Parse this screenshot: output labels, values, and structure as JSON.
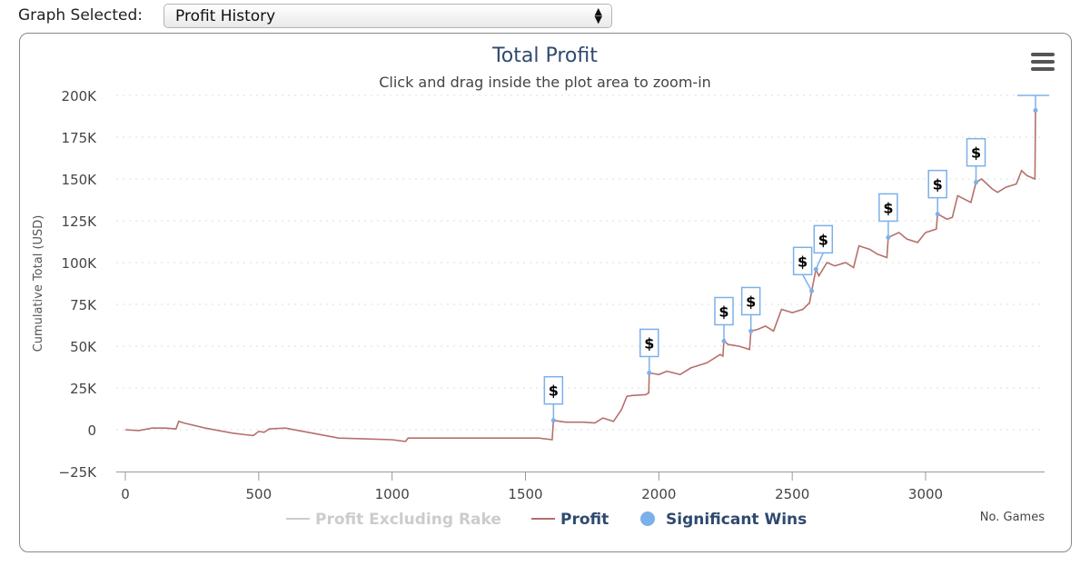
{
  "selector": {
    "label": "Graph Selected:",
    "value": "Profit History"
  },
  "chart_data": {
    "type": "line",
    "title": "Total Profit",
    "subtitle": "Click and drag inside the plot area to zoom-in",
    "xlabel": "No. Games",
    "ylabel": "Cumulative Total (USD)",
    "xlim": [
      -20,
      3450
    ],
    "ylim": [
      -25,
      200
    ],
    "x_ticks": [
      0,
      500,
      1000,
      1500,
      2000,
      2500,
      3000
    ],
    "y_ticks": [
      {
        "v": 200,
        "l": "200K"
      },
      {
        "v": 175,
        "l": "175K"
      },
      {
        "v": 150,
        "l": "150K"
      },
      {
        "v": 125,
        "l": "125K"
      },
      {
        "v": 100,
        "l": "100K"
      },
      {
        "v": 75,
        "l": "75K"
      },
      {
        "v": 50,
        "l": "50K"
      },
      {
        "v": 25,
        "l": "25K"
      },
      {
        "v": 0,
        "l": "0"
      },
      {
        "v": -25,
        "l": "−25K"
      }
    ],
    "legend": [
      {
        "name": "Profit Excluding Rake",
        "color": "#cccccc",
        "visible": false
      },
      {
        "name": "Profit",
        "color": "#b5706b",
        "visible": true
      },
      {
        "name": "Significant Wins",
        "color": "#7cb0ea",
        "visible": true
      }
    ],
    "series": [
      {
        "name": "Profit",
        "color": "#b5706b",
        "points": [
          [
            0,
            0
          ],
          [
            50,
            -0.5
          ],
          [
            100,
            1
          ],
          [
            150,
            1
          ],
          [
            190,
            0.5
          ],
          [
            200,
            5
          ],
          [
            220,
            4
          ],
          [
            300,
            1
          ],
          [
            400,
            -2
          ],
          [
            450,
            -3
          ],
          [
            480,
            -3.5
          ],
          [
            500,
            -1
          ],
          [
            520,
            -1.5
          ],
          [
            540,
            0.5
          ],
          [
            600,
            1
          ],
          [
            700,
            -2
          ],
          [
            800,
            -5
          ],
          [
            900,
            -5.5
          ],
          [
            1000,
            -6
          ],
          [
            1050,
            -7
          ],
          [
            1060,
            -5
          ],
          [
            1200,
            -5
          ],
          [
            1400,
            -5
          ],
          [
            1550,
            -5
          ],
          [
            1600,
            -6
          ],
          [
            1605,
            5.6
          ],
          [
            1650,
            4.5
          ],
          [
            1720,
            4.5
          ],
          [
            1760,
            4
          ],
          [
            1790,
            7
          ],
          [
            1830,
            5
          ],
          [
            1860,
            12
          ],
          [
            1880,
            20
          ],
          [
            1900,
            20.5
          ],
          [
            1950,
            21
          ],
          [
            1962,
            22
          ],
          [
            1964,
            34
          ],
          [
            2000,
            33
          ],
          [
            2030,
            35
          ],
          [
            2080,
            33
          ],
          [
            2120,
            37
          ],
          [
            2180,
            40
          ],
          [
            2230,
            45
          ],
          [
            2240,
            44
          ],
          [
            2244,
            53
          ],
          [
            2260,
            51
          ],
          [
            2300,
            50
          ],
          [
            2340,
            48
          ],
          [
            2345,
            59
          ],
          [
            2370,
            60
          ],
          [
            2400,
            62
          ],
          [
            2430,
            59
          ],
          [
            2460,
            72
          ],
          [
            2500,
            70
          ],
          [
            2540,
            72
          ],
          [
            2565,
            76
          ],
          [
            2573,
            83
          ],
          [
            2589,
            96
          ],
          [
            2600,
            92
          ],
          [
            2630,
            100
          ],
          [
            2660,
            98
          ],
          [
            2700,
            100
          ],
          [
            2730,
            97
          ],
          [
            2750,
            110
          ],
          [
            2790,
            108
          ],
          [
            2820,
            105
          ],
          [
            2855,
            103
          ],
          [
            2860,
            115
          ],
          [
            2900,
            118
          ],
          [
            2930,
            114
          ],
          [
            2970,
            112
          ],
          [
            3000,
            118
          ],
          [
            3040,
            120
          ],
          [
            3045,
            129
          ],
          [
            3080,
            126
          ],
          [
            3100,
            127
          ],
          [
            3120,
            140
          ],
          [
            3170,
            136
          ],
          [
            3189,
            148
          ],
          [
            3210,
            150
          ],
          [
            3250,
            144
          ],
          [
            3270,
            142
          ],
          [
            3300,
            145
          ],
          [
            3340,
            147
          ],
          [
            3360,
            155
          ],
          [
            3380,
            152
          ],
          [
            3410,
            150
          ],
          [
            3412,
            191
          ]
        ]
      }
    ],
    "significant_wins": [
      {
        "x": 1605,
        "y": 5.6,
        "label": "$"
      },
      {
        "x": 1964,
        "y": 34,
        "label": "$"
      },
      {
        "x": 2244,
        "y": 53,
        "label": "$"
      },
      {
        "x": 2345,
        "y": 59,
        "label": "$"
      },
      {
        "x": 2573,
        "y": 83,
        "label": "$"
      },
      {
        "x": 2589,
        "y": 96,
        "label": "$"
      },
      {
        "x": 2860,
        "y": 115,
        "label": "$"
      },
      {
        "x": 3045,
        "y": 129,
        "label": "$"
      },
      {
        "x": 3189,
        "y": 148,
        "label": "$"
      }
    ],
    "last_win": {
      "x": 3412,
      "y": 191
    }
  }
}
